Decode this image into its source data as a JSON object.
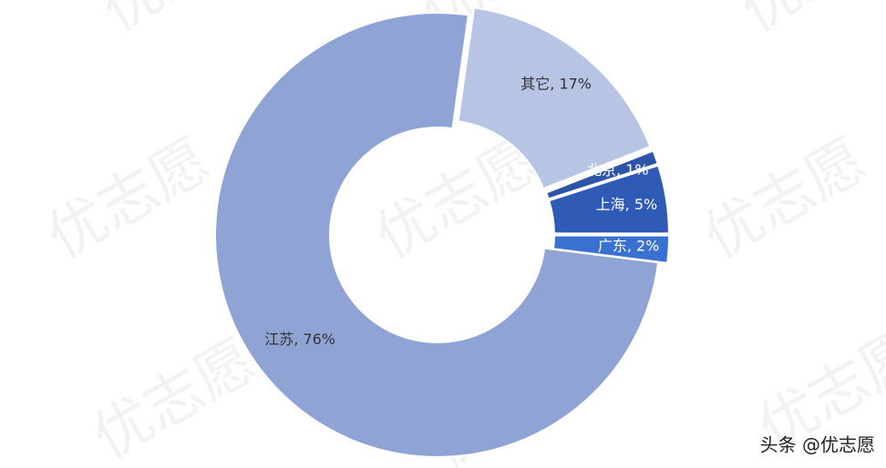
{
  "chart_data": {
    "type": "donut",
    "values": [
      17,
      1,
      5,
      2,
      76
    ],
    "value_labels": [
      "其它, 17%",
      "北京, 1%",
      "上海, 5%",
      "广东, 2%",
      "江苏, 76%"
    ],
    "colors": [
      "#b8c4e4",
      "#2e54a8",
      "#2f5bb7",
      "#3a70d0",
      "#8fa4d5"
    ],
    "exploded": [
      true,
      true,
      true,
      true,
      false
    ],
    "watermark": "优志愿",
    "footer": "头条 @优志愿"
  }
}
